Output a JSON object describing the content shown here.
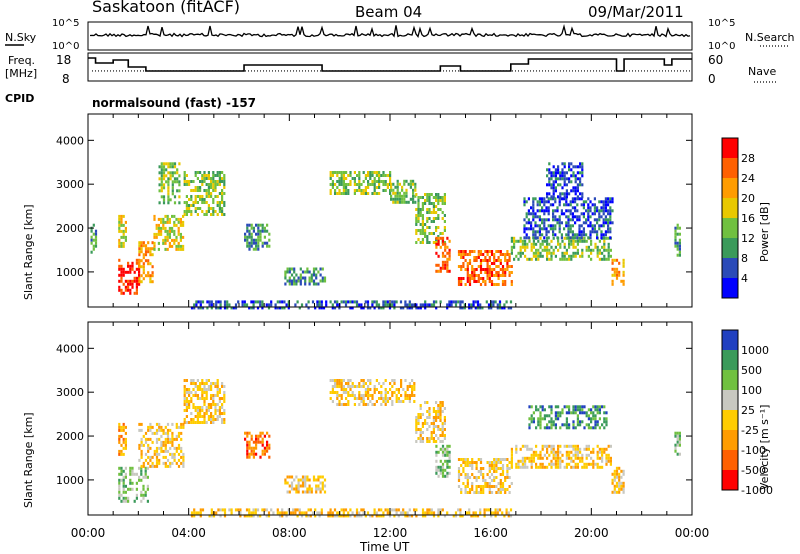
{
  "header": {
    "station": "Saskatoon (fitACF)",
    "beam": "Beam 04",
    "date": "09/Mar/2011"
  },
  "noise_panel": {
    "left_label": "N.Sky",
    "right_label": "N.Search",
    "tick_top": "10^5",
    "tick_bottom": "10^0"
  },
  "freq_panel": {
    "left_label_line1": "Freq.",
    "left_label_line2": "[MHz]",
    "right_label": "Nave",
    "left_ticks": [
      "18",
      "8"
    ],
    "right_ticks": [
      "60",
      "0"
    ],
    "freq_mhz_steps": [
      {
        "t": 0.0,
        "f": 17.5
      },
      {
        "t": 0.3,
        "f": 15.0
      },
      {
        "t": 1.0,
        "f": 16.5
      },
      {
        "t": 1.6,
        "f": 13.0
      },
      {
        "t": 2.3,
        "f": 11.0
      },
      {
        "t": 6.2,
        "f": 14.0
      },
      {
        "t": 9.3,
        "f": 11.0
      },
      {
        "t": 14.0,
        "f": 13.5
      },
      {
        "t": 14.8,
        "f": 11.0
      },
      {
        "t": 16.8,
        "f": 14.5
      },
      {
        "t": 17.5,
        "f": 17.0
      },
      {
        "t": 21.0,
        "f": 11.0
      },
      {
        "t": 21.3,
        "f": 17.0
      },
      {
        "t": 22.9,
        "f": 14.0
      },
      {
        "t": 23.2,
        "f": 17.0
      },
      {
        "t": 24.0,
        "f": 17.0
      }
    ],
    "nave_value": 22
  },
  "cpid": {
    "label": "CPID",
    "mode": "normalsound (fast) -157"
  },
  "chart_data": [
    {
      "type": "heatmap",
      "name": "power",
      "ylabel": "Slant Range [km]",
      "xlim": [
        0,
        24
      ],
      "ylim": [
        200,
        4600
      ],
      "yticks": [
        "1000",
        "2000",
        "3000",
        "4000"
      ],
      "colorbar_label": "Power [dB]",
      "colorbar_ticks": [
        "28",
        "24",
        "20",
        "16",
        "12",
        "8",
        "4"
      ],
      "colorbar_colors": [
        "#ff0000",
        "#ff6000",
        "#ff9c00",
        "#e8c800",
        "#70c040",
        "#3a9a5a",
        "#2a4ab8",
        "#0000ff"
      ],
      "echo_regions": [
        {
          "t0": 0.1,
          "t1": 0.3,
          "r0": 1300,
          "r1": 2100,
          "level": 2
        },
        {
          "t0": 1.2,
          "t1": 1.5,
          "r0": 1600,
          "r1": 2300,
          "level": 4
        },
        {
          "t0": 1.2,
          "t1": 2.0,
          "r0": 500,
          "r1": 1300,
          "level": 7
        },
        {
          "t0": 2.0,
          "t1": 2.6,
          "r0": 800,
          "r1": 1700,
          "level": 5
        },
        {
          "t0": 2.6,
          "t1": 3.8,
          "r0": 1500,
          "r1": 2300,
          "level": 4
        },
        {
          "t0": 2.8,
          "t1": 3.6,
          "r0": 2600,
          "r1": 3500,
          "level": 3
        },
        {
          "t0": 3.8,
          "t1": 5.4,
          "r0": 2300,
          "r1": 3300,
          "level": 3
        },
        {
          "t0": 6.2,
          "t1": 7.2,
          "r0": 1500,
          "r1": 2100,
          "level": 2
        },
        {
          "t0": 7.8,
          "t1": 9.4,
          "r0": 700,
          "r1": 1100,
          "level": 2
        },
        {
          "t0": 9.6,
          "t1": 12.0,
          "r0": 2800,
          "r1": 3300,
          "level": 3
        },
        {
          "t0": 12.0,
          "t1": 13.0,
          "r0": 2600,
          "r1": 3100,
          "level": 3
        },
        {
          "t0": 13.0,
          "t1": 14.2,
          "r0": 1700,
          "r1": 2800,
          "level": 3
        },
        {
          "t0": 13.8,
          "t1": 14.4,
          "r0": 1000,
          "r1": 1800,
          "level": 6
        },
        {
          "t0": 14.7,
          "t1": 16.8,
          "r0": 700,
          "r1": 1500,
          "level": 6
        },
        {
          "t0": 16.8,
          "t1": 20.8,
          "r0": 1300,
          "r1": 1800,
          "level": 3
        },
        {
          "t0": 17.3,
          "t1": 20.8,
          "r0": 1800,
          "r1": 2700,
          "level": 1
        },
        {
          "t0": 18.2,
          "t1": 19.6,
          "r0": 2700,
          "r1": 3500,
          "level": 1
        },
        {
          "t0": 20.8,
          "t1": 21.3,
          "r0": 700,
          "r1": 1300,
          "level": 5
        },
        {
          "t0": 23.3,
          "t1": 23.5,
          "r0": 1400,
          "r1": 2100,
          "level": 2
        },
        {
          "t0": 4.0,
          "t1": 16.8,
          "r0": 200,
          "r1": 350,
          "level": 1
        }
      ]
    },
    {
      "type": "heatmap",
      "name": "velocity",
      "ylabel": "Slant Range [km]",
      "xlabel": "Time UT",
      "xlim": [
        0,
        24
      ],
      "ylim": [
        200,
        4600
      ],
      "yticks": [
        "1000",
        "2000",
        "3000",
        "4000"
      ],
      "xticks": [
        "00:00",
        "04:00",
        "08:00",
        "12:00",
        "16:00",
        "20:00",
        "00:00"
      ],
      "colorbar_label": "Velocity [m s⁻¹]",
      "colorbar_ticks": [
        "1000",
        "500",
        "100",
        "25",
        "-25",
        "-100",
        "-500",
        "-1000"
      ],
      "colorbar_colors": [
        "#2040c0",
        "#3a9a5a",
        "#70c040",
        "#c8c8c0",
        "#ffcc00",
        "#ff9c00",
        "#ff6000",
        "#ff0000"
      ],
      "echo_regions": [
        {
          "t0": 1.2,
          "t1": 2.4,
          "r0": 500,
          "r1": 1300,
          "level": 5
        },
        {
          "t0": 1.2,
          "t1": 1.5,
          "r0": 1600,
          "r1": 2300,
          "level": 2
        },
        {
          "t0": 2.0,
          "t1": 3.8,
          "r0": 1300,
          "r1": 2300,
          "level": 3
        },
        {
          "t0": 3.8,
          "t1": 5.4,
          "r0": 2300,
          "r1": 3300,
          "level": 3
        },
        {
          "t0": 6.2,
          "t1": 7.2,
          "r0": 1500,
          "r1": 2100,
          "level": 1
        },
        {
          "t0": 7.8,
          "t1": 9.4,
          "r0": 700,
          "r1": 1100,
          "level": 3
        },
        {
          "t0": 9.6,
          "t1": 13.0,
          "r0": 2700,
          "r1": 3300,
          "level": 3
        },
        {
          "t0": 13.0,
          "t1": 14.2,
          "r0": 1900,
          "r1": 2800,
          "level": 3
        },
        {
          "t0": 13.8,
          "t1": 14.4,
          "r0": 1100,
          "r1": 1800,
          "level": 5
        },
        {
          "t0": 14.7,
          "t1": 16.8,
          "r0": 700,
          "r1": 1500,
          "level": 3
        },
        {
          "t0": 16.8,
          "t1": 20.8,
          "r0": 1300,
          "r1": 1800,
          "level": 3
        },
        {
          "t0": 17.5,
          "t1": 20.6,
          "r0": 2200,
          "r1": 2700,
          "level": 6
        },
        {
          "t0": 20.8,
          "t1": 21.3,
          "r0": 700,
          "r1": 1300,
          "level": 3
        },
        {
          "t0": 23.3,
          "t1": 23.5,
          "r0": 1600,
          "r1": 2100,
          "level": 5
        },
        {
          "t0": 4.0,
          "t1": 16.8,
          "r0": 200,
          "r1": 350,
          "level": 3
        }
      ]
    }
  ]
}
